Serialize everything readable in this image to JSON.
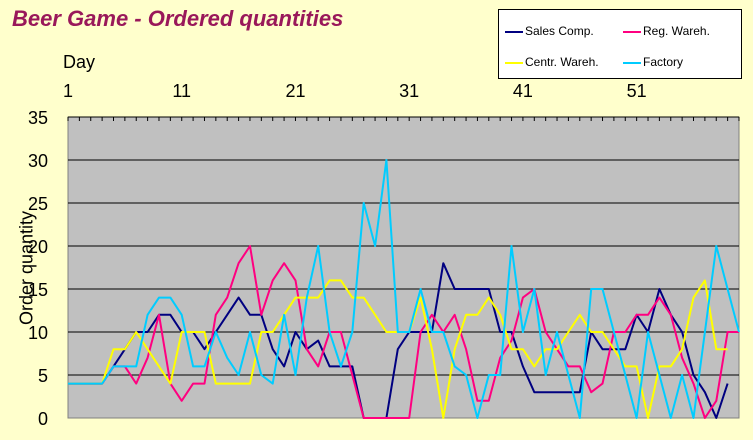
{
  "colors": {
    "background": "#FFFFCC",
    "plot_area": "#C0C0C0",
    "title": "#99185A"
  },
  "chart_data": {
    "type": "line",
    "title": "Beer Game - Ordered quantities",
    "xlabel": "Day",
    "ylabel": "Order quantity",
    "x_ticks": [
      1,
      11,
      21,
      31,
      41,
      51
    ],
    "x_range": [
      1,
      60
    ],
    "y_ticks": [
      0,
      5,
      10,
      15,
      20,
      25,
      30,
      35
    ],
    "ylim": [
      0,
      35
    ],
    "grid": true,
    "x_axis_position": "top",
    "legend_position": "top-right",
    "series": [
      {
        "name": "Sales Comp.",
        "color": "#000080",
        "values": [
          4,
          4,
          4,
          4,
          6,
          8,
          10,
          10,
          12,
          12,
          10,
          10,
          8,
          10,
          12,
          14,
          12,
          12,
          8,
          6,
          10,
          8,
          9,
          6,
          6,
          6,
          0,
          0,
          0,
          8,
          10,
          10,
          10,
          18,
          15,
          15,
          15,
          15,
          10,
          10,
          6,
          3,
          3,
          3,
          3,
          3,
          10,
          8,
          8,
          8,
          12,
          10,
          15,
          12,
          10,
          5,
          3,
          0,
          4
        ]
      },
      {
        "name": "Reg. Wareh.",
        "color": "#FF0080",
        "values": [
          4,
          4,
          4,
          4,
          6,
          6,
          4,
          7,
          12,
          4,
          2,
          4,
          4,
          12,
          14,
          18,
          20,
          12,
          16,
          18,
          16,
          8,
          6,
          10,
          10,
          5,
          0,
          0,
          0,
          0,
          0,
          10,
          12,
          10,
          12,
          8,
          2,
          2,
          7,
          9,
          14,
          15,
          10,
          8,
          6,
          6,
          3,
          4,
          10,
          10,
          12,
          12,
          14,
          12,
          7,
          4,
          0,
          2,
          10,
          10
        ]
      },
      {
        "name": "Centr. Wareh.",
        "color": "#FFFF00",
        "values": [
          4,
          4,
          4,
          4,
          8,
          8,
          10,
          8,
          6,
          4,
          10,
          10,
          10,
          4,
          4,
          4,
          4,
          10,
          10,
          12,
          14,
          14,
          14,
          16,
          16,
          14,
          14,
          12,
          10,
          10,
          10,
          14,
          8,
          0,
          8,
          12,
          12,
          14,
          12,
          8,
          8,
          6,
          8,
          8,
          10,
          12,
          10,
          10,
          8,
          6,
          6,
          0,
          6,
          6,
          8,
          14,
          16,
          8,
          8
        ]
      },
      {
        "name": "Factory",
        "color": "#00CCFF",
        "values": [
          4,
          4,
          4,
          4,
          6,
          6,
          6,
          12,
          14,
          14,
          12,
          6,
          6,
          10,
          7,
          5,
          10,
          5,
          4,
          12,
          5,
          14,
          20,
          10,
          6,
          10,
          25,
          20,
          30,
          10,
          10,
          15,
          10,
          10,
          6,
          5,
          0,
          5,
          5,
          20,
          10,
          15,
          5,
          10,
          5,
          0,
          15,
          15,
          10,
          5,
          0,
          10,
          5,
          0,
          5,
          0,
          10,
          20,
          15,
          10
        ]
      }
    ]
  }
}
